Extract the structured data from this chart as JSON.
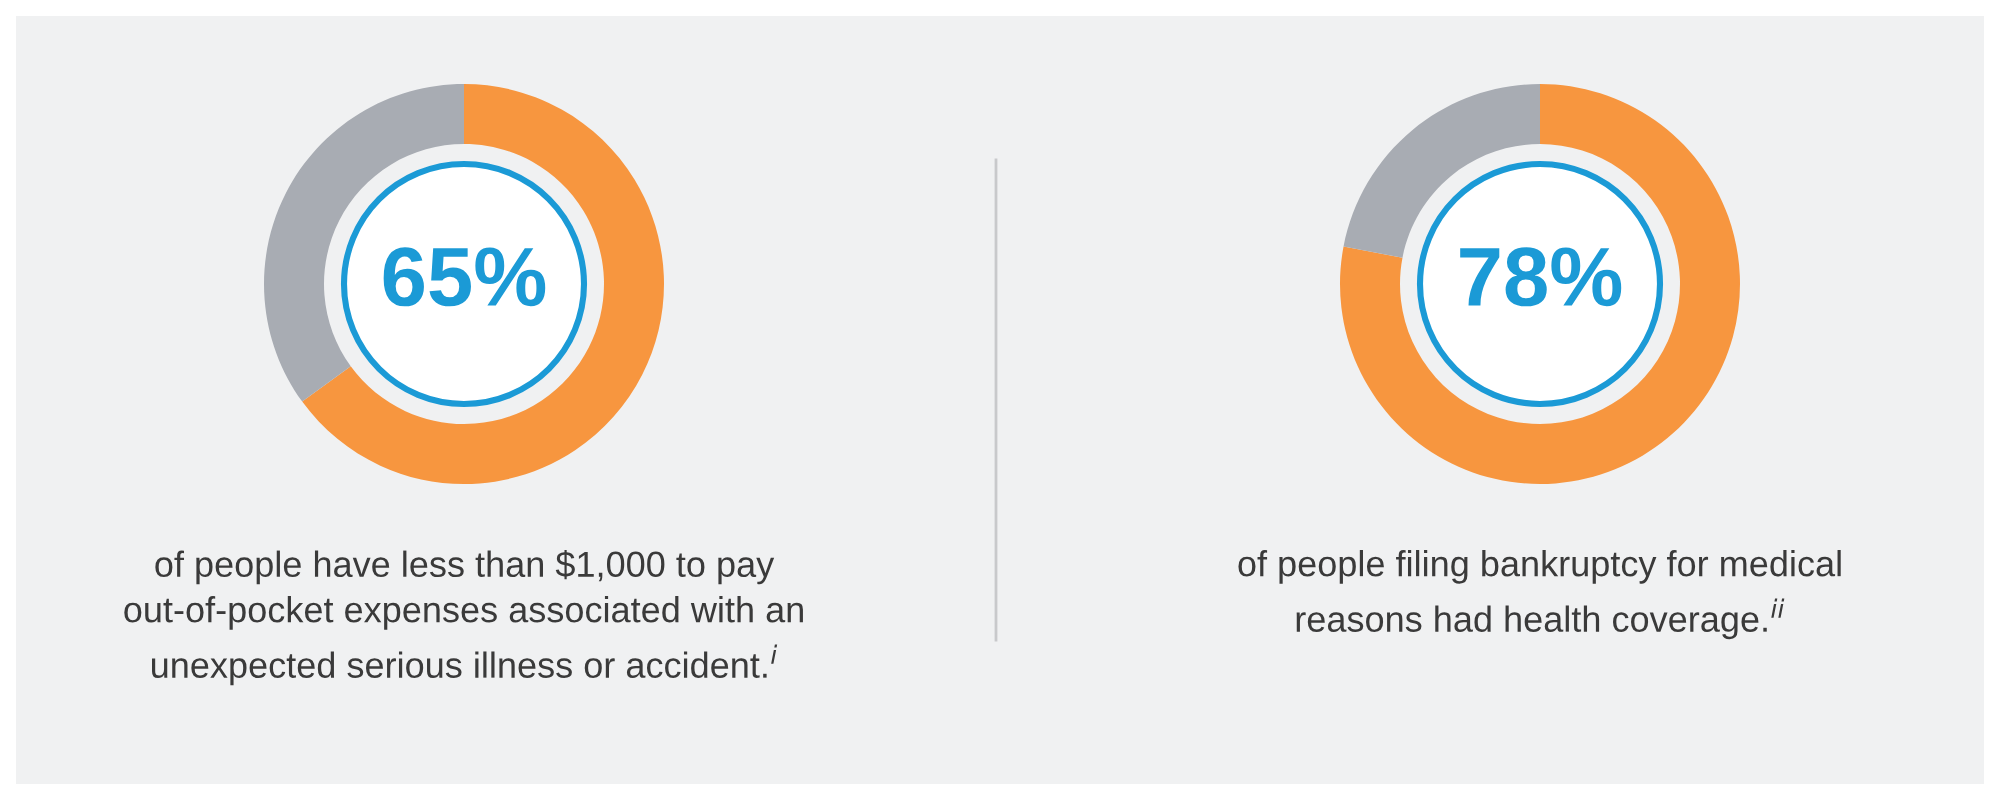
{
  "chart_data": [
    {
      "type": "donut",
      "categories": [
        null,
        null
      ],
      "values": [
        65,
        35
      ],
      "colors": [
        "#f7963f",
        "#a8acb3"
      ],
      "value_labels": [
        "65%",
        null
      ],
      "annotations": [
        "of people have less than $1,000 to pay\nout-of-pocket expenses associated with an\nunexpected serious illness or accident.$^{i}$"
      ]
    },
    {
      "type": "donut",
      "categories": [
        null,
        null
      ],
      "values": [
        78,
        22
      ],
      "colors": [
        "#f7963f",
        "#a8acb3"
      ],
      "value_labels": [
        "78%",
        null
      ],
      "annotations": [
        "of people filing bankruptcy for medical\nreasons had health coverage.$^{ii}$"
      ]
    }
  ]
}
